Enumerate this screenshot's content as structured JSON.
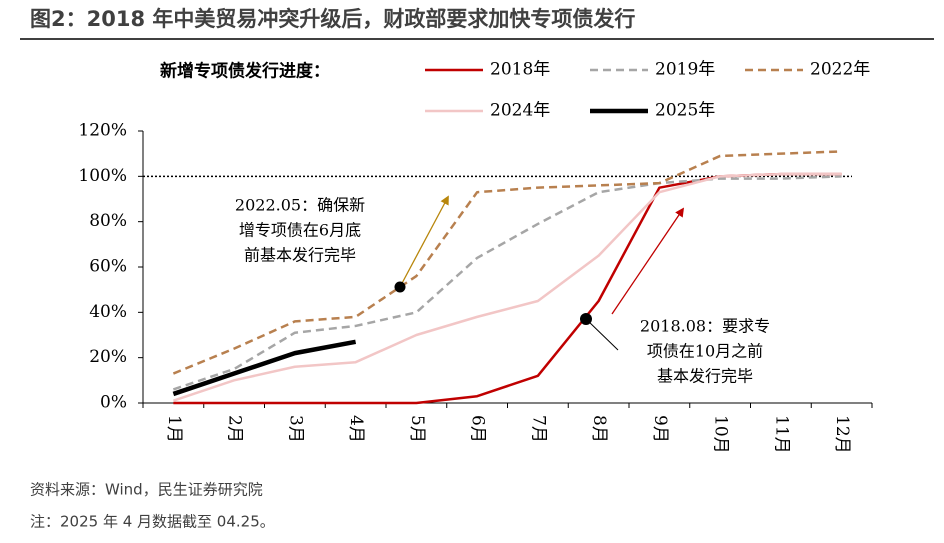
{
  "chart_data": {
    "type": "line",
    "title": "图2：2018 年中美贸易冲突升级后，财政部要求加快专项债发行",
    "legend_title": "新增专项债发行进度：",
    "categories": [
      "1月",
      "2月",
      "3月",
      "4月",
      "5月",
      "6月",
      "7月",
      "8月",
      "9月",
      "10月",
      "11月",
      "12月"
    ],
    "series": [
      {
        "name": "2018年",
        "color": "#c00000",
        "style": "solid",
        "values": [
          0,
          0,
          0,
          0,
          0,
          3,
          12,
          45,
          95,
          100,
          101,
          101
        ]
      },
      {
        "name": "2019年",
        "color": "#a6a6a6",
        "style": "dashed",
        "values": [
          6,
          15,
          31,
          34,
          40,
          64,
          79,
          93,
          97,
          99,
          99,
          100
        ]
      },
      {
        "name": "2022年",
        "color": "#b8804f",
        "style": "dashed",
        "values": [
          13,
          24,
          36,
          38,
          56,
          93,
          95,
          96,
          97,
          109,
          110,
          111
        ]
      },
      {
        "name": "2024年",
        "color": "#f2c6c6",
        "style": "solid",
        "values": [
          1,
          10,
          16,
          18,
          30,
          38,
          45,
          65,
          93,
          100,
          101,
          101
        ]
      },
      {
        "name": "2025年",
        "color": "#000000",
        "style": "bold",
        "values": [
          4,
          13,
          22,
          27,
          null,
          null,
          null,
          null,
          null,
          null,
          null,
          null
        ]
      }
    ],
    "ylim": [
      0,
      120
    ],
    "yticks": [
      {
        "value": 0,
        "label": "0%"
      },
      {
        "value": 20,
        "label": "20%"
      },
      {
        "value": 40,
        "label": "40%"
      },
      {
        "value": 60,
        "label": "60%"
      },
      {
        "value": 80,
        "label": "80%"
      },
      {
        "value": 100,
        "label": "100%"
      },
      {
        "value": 120,
        "label": "120%"
      }
    ],
    "reference_line": 100,
    "annotations": [
      {
        "lines": [
          "2022.05：确保新",
          "增专项债在6月底",
          "前基本发行完毕"
        ]
      },
      {
        "lines": [
          "2018.08：要求专",
          "项债在10月之前",
          "基本发行完毕"
        ]
      }
    ],
    "source": "资料来源：Wind，民生证券研究院",
    "note": "注：2025 年 4 月数据截至 04.25。"
  }
}
